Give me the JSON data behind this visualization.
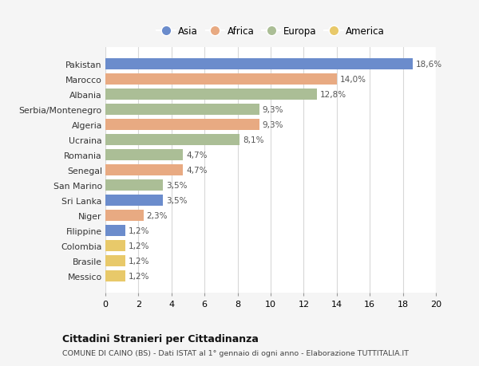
{
  "categories": [
    "Pakistan",
    "Marocco",
    "Albania",
    "Serbia/Montenegro",
    "Algeria",
    "Ucraina",
    "Romania",
    "Senegal",
    "San Marino",
    "Sri Lanka",
    "Niger",
    "Filippine",
    "Colombia",
    "Brasile",
    "Messico"
  ],
  "values": [
    18.6,
    14.0,
    12.8,
    9.3,
    9.3,
    8.1,
    4.7,
    4.7,
    3.5,
    3.5,
    2.3,
    1.2,
    1.2,
    1.2,
    1.2
  ],
  "labels": [
    "18,6%",
    "14,0%",
    "12,8%",
    "9,3%",
    "9,3%",
    "8,1%",
    "4,7%",
    "4,7%",
    "3,5%",
    "3,5%",
    "2,3%",
    "1,2%",
    "1,2%",
    "1,2%",
    "1,2%"
  ],
  "continent": [
    "Asia",
    "Africa",
    "Europa",
    "Europa",
    "Africa",
    "Europa",
    "Europa",
    "Africa",
    "Europa",
    "Asia",
    "Africa",
    "Asia",
    "America",
    "America",
    "America"
  ],
  "colors": {
    "Asia": "#6b8ccc",
    "Africa": "#e8aa82",
    "Europa": "#abbe96",
    "America": "#e8c96a"
  },
  "legend_order": [
    "Asia",
    "Africa",
    "Europa",
    "America"
  ],
  "title": "Cittadini Stranieri per Cittadinanza",
  "subtitle": "COMUNE DI CAINO (BS) - Dati ISTAT al 1° gennaio di ogni anno - Elaborazione TUTTITALIA.IT",
  "xlim": [
    0,
    20
  ],
  "xticks": [
    0,
    2,
    4,
    6,
    8,
    10,
    12,
    14,
    16,
    18,
    20
  ],
  "background_color": "#f5f5f5",
  "plot_background": "#ffffff",
  "grid_color": "#d8d8d8"
}
